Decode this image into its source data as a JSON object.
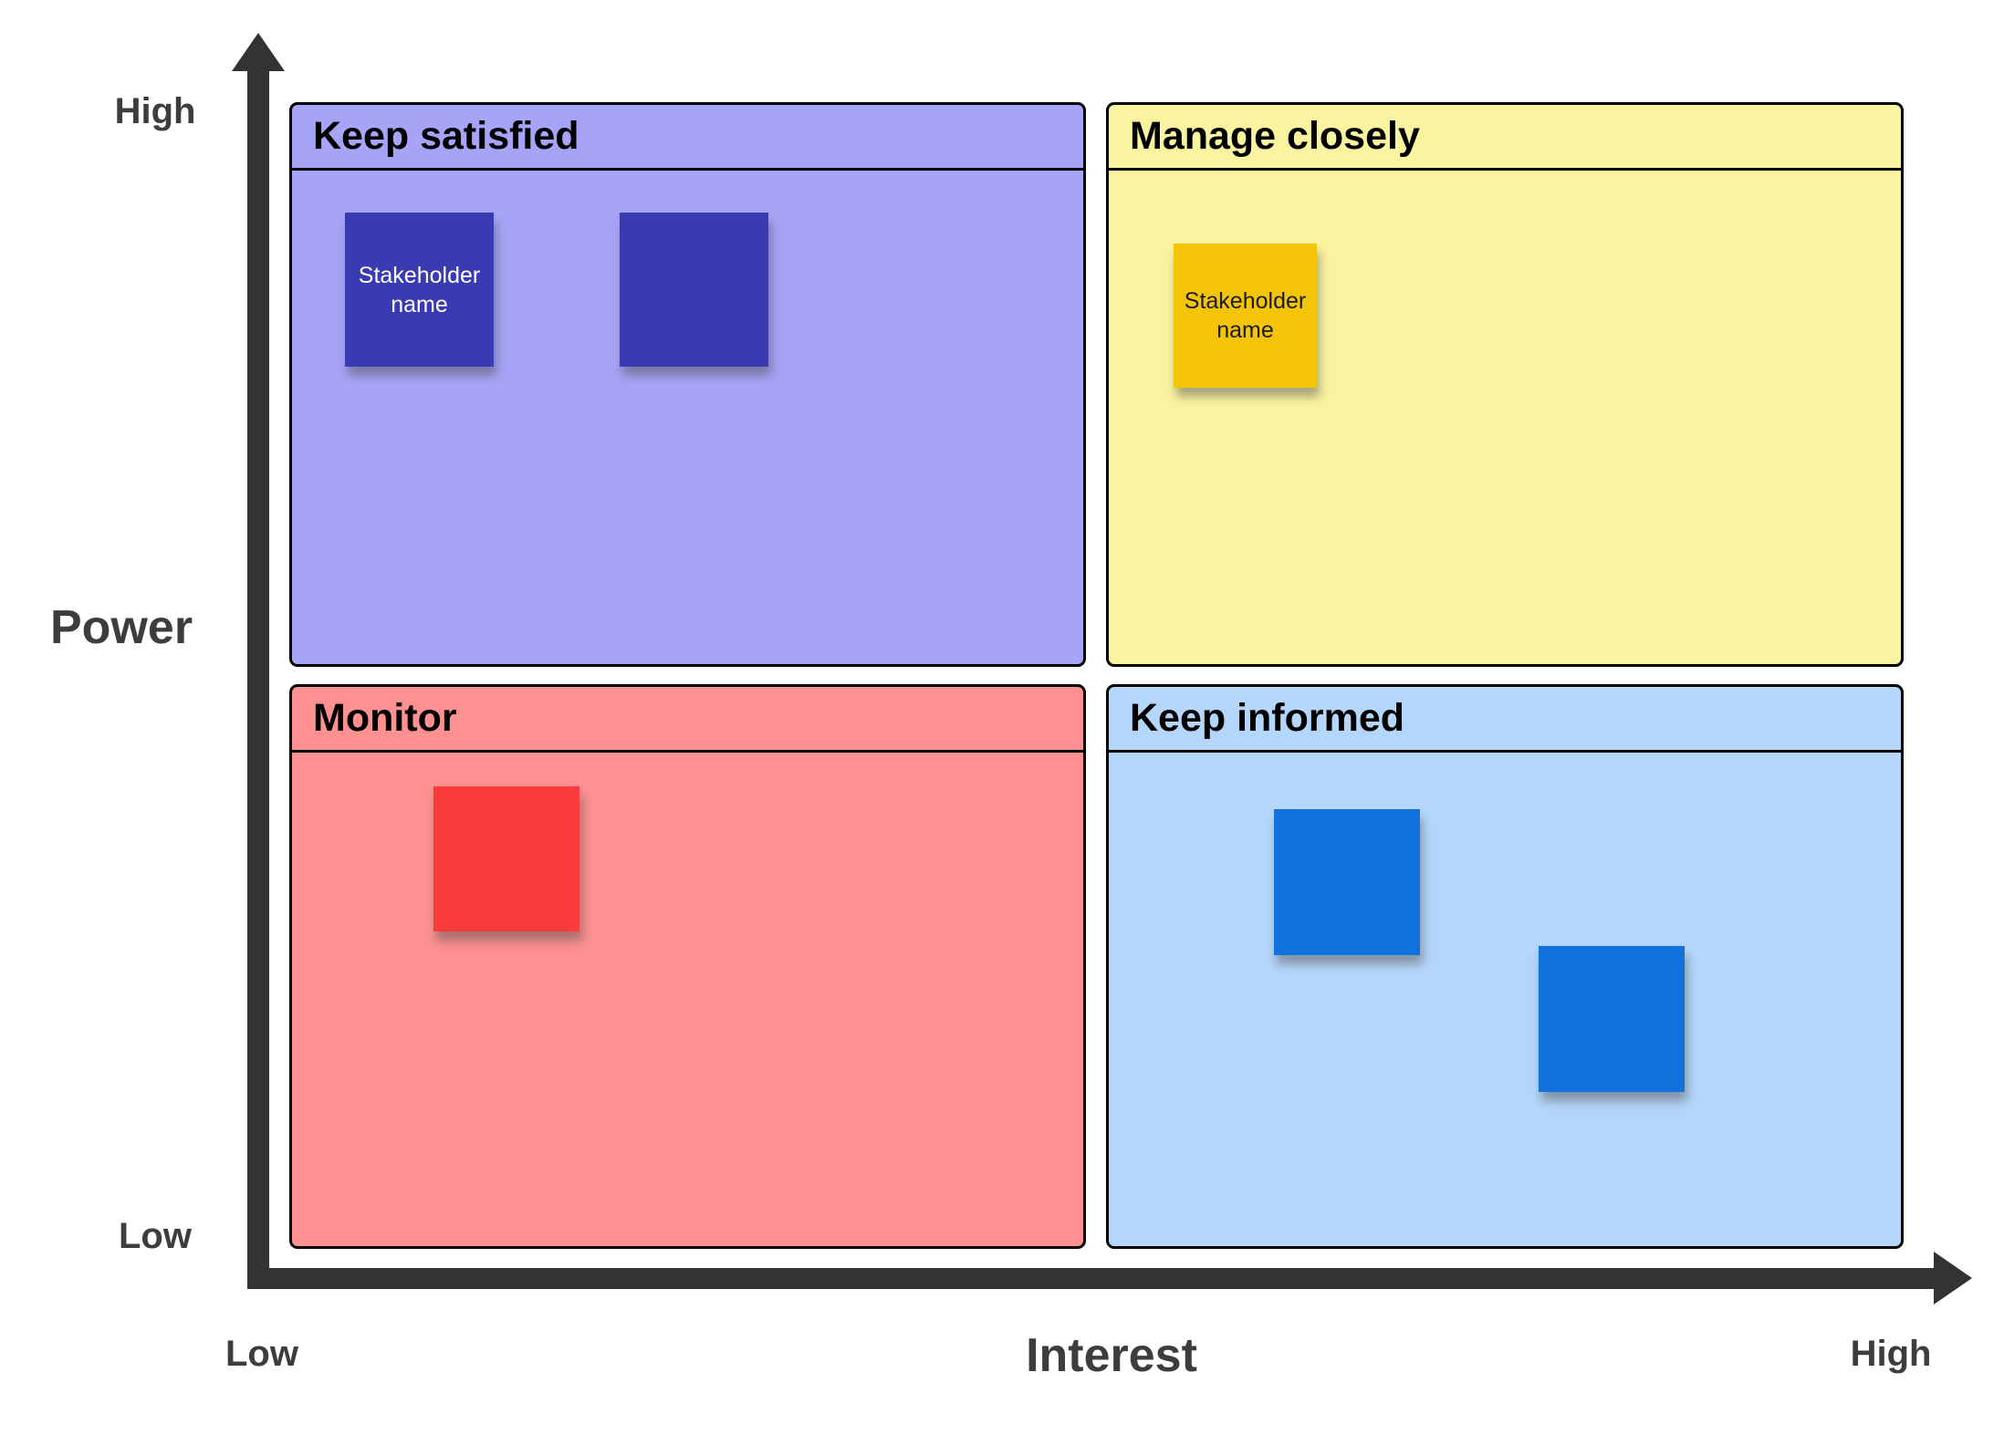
{
  "axes": {
    "y": {
      "title": "Power",
      "high_label": "High",
      "low_label": "Low"
    },
    "x": {
      "title": "Interest",
      "low_label": "Low",
      "high_label": "High"
    }
  },
  "quadrants": {
    "keep_satisfied": {
      "title": "Keep satisfied",
      "bg_color": "#a6a4f7",
      "notes": [
        {
          "text": "Stakeholder name",
          "color": "#3a3ab2",
          "text_color": "#ffffff"
        },
        {
          "text": "",
          "color": "#3a3ab2",
          "text_color": "#ffffff"
        }
      ]
    },
    "manage_closely": {
      "title": "Manage closely",
      "bg_color": "#faf4a0",
      "notes": [
        {
          "text": "Stakeholder name",
          "color": "#f3c408",
          "text_color": "#1c1c1c"
        }
      ]
    },
    "monitor": {
      "title": "Monitor",
      "bg_color": "#fd9090",
      "notes": [
        {
          "text": "",
          "color": "#fa3b3b",
          "text_color": "#ffffff"
        }
      ]
    },
    "keep_informed": {
      "title": "Keep informed",
      "bg_color": "#b4d6fa",
      "notes": [
        {
          "text": "",
          "color": "#1171dd",
          "text_color": "#ffffff"
        },
        {
          "text": "",
          "color": "#1171dd",
          "text_color": "#ffffff"
        }
      ]
    }
  },
  "colors": {
    "axis": "#333333",
    "axis_label": "#3d3d3d",
    "quadrant_border": "#000000",
    "page_background": "#ffffff"
  }
}
